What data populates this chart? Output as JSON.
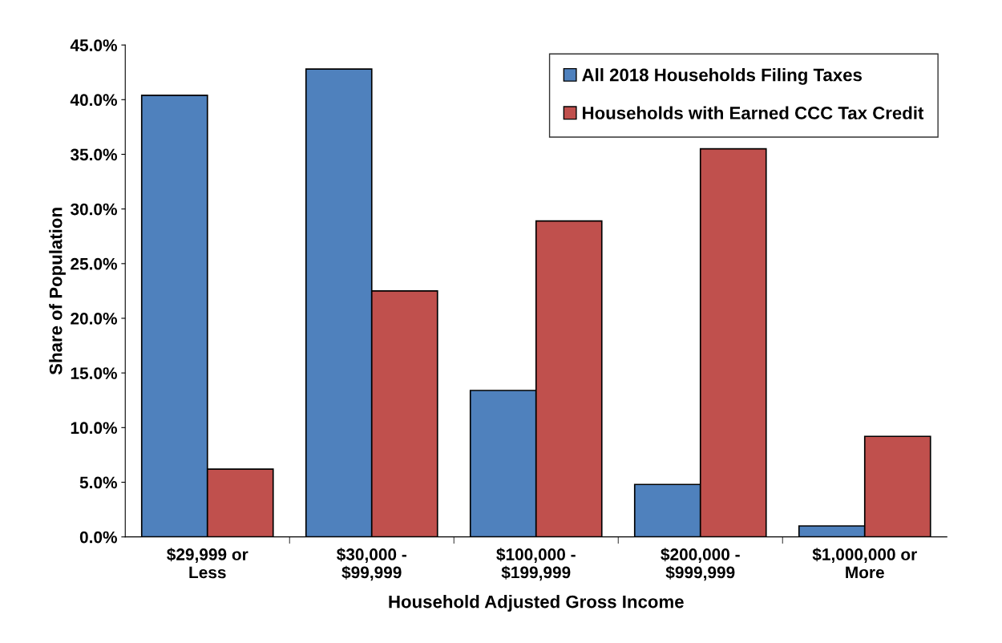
{
  "chart_data": {
    "type": "bar",
    "xlabel": "Household Adjusted Gross Income",
    "ylabel": "Share of Population",
    "categories": [
      "$29,999 or\nLess",
      "$30,000 -\n$99,999",
      "$100,000 -\n$199,999",
      "$200,000 -\n$999,999",
      "$1,000,000 or\nMore"
    ],
    "series": [
      {
        "name": "All 2018 Households Filing Taxes",
        "color": "#4f81bd",
        "values": [
          40.4,
          42.8,
          13.4,
          4.8,
          1.0
        ]
      },
      {
        "name": "Households with Earned CCC Tax Credit",
        "color": "#c0504d",
        "values": [
          6.2,
          22.5,
          28.9,
          35.5,
          9.2
        ]
      }
    ],
    "ylim": [
      0,
      45
    ],
    "yticks": [
      {
        "value": 0,
        "label": "0.0%"
      },
      {
        "value": 5,
        "label": "5.0%"
      },
      {
        "value": 10,
        "label": "10.0%"
      },
      {
        "value": 15,
        "label": "15.0%"
      },
      {
        "value": 20,
        "label": "20.0%"
      },
      {
        "value": 25,
        "label": "25.0%"
      },
      {
        "value": 30,
        "label": "30.0%"
      },
      {
        "value": 35,
        "label": "35.0%"
      },
      {
        "value": 40,
        "label": "40.0%"
      },
      {
        "value": 45,
        "label": "45.0%"
      }
    ],
    "grid": false,
    "legend": "top right"
  }
}
